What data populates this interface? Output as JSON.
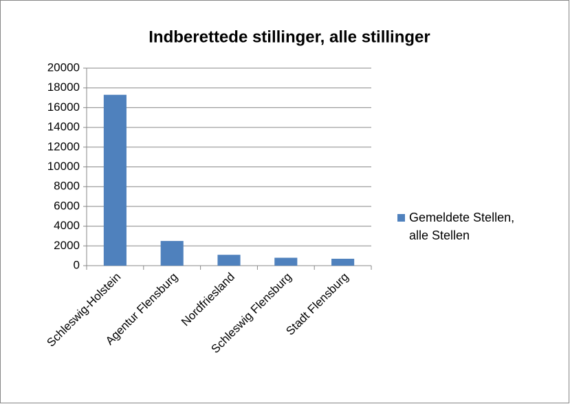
{
  "chart_data": {
    "type": "bar",
    "title": "Indberettede stillinger, alle stillinger",
    "categories": [
      "Schleswig-Holstein",
      "Agentur Flensburg",
      "Nordfriesland",
      "Schleswig Flensburg",
      "Stadt Flensburg"
    ],
    "series": [
      {
        "name": "Gemeldete Stellen, alle Stellen",
        "color": "#4f81bd",
        "values": [
          17300,
          2500,
          1100,
          800,
          700
        ]
      }
    ],
    "ylim": [
      0,
      20000
    ],
    "yticks": [
      0,
      2000,
      4000,
      6000,
      8000,
      10000,
      12000,
      14000,
      16000,
      18000,
      20000
    ],
    "grid": true,
    "legend": "right"
  }
}
